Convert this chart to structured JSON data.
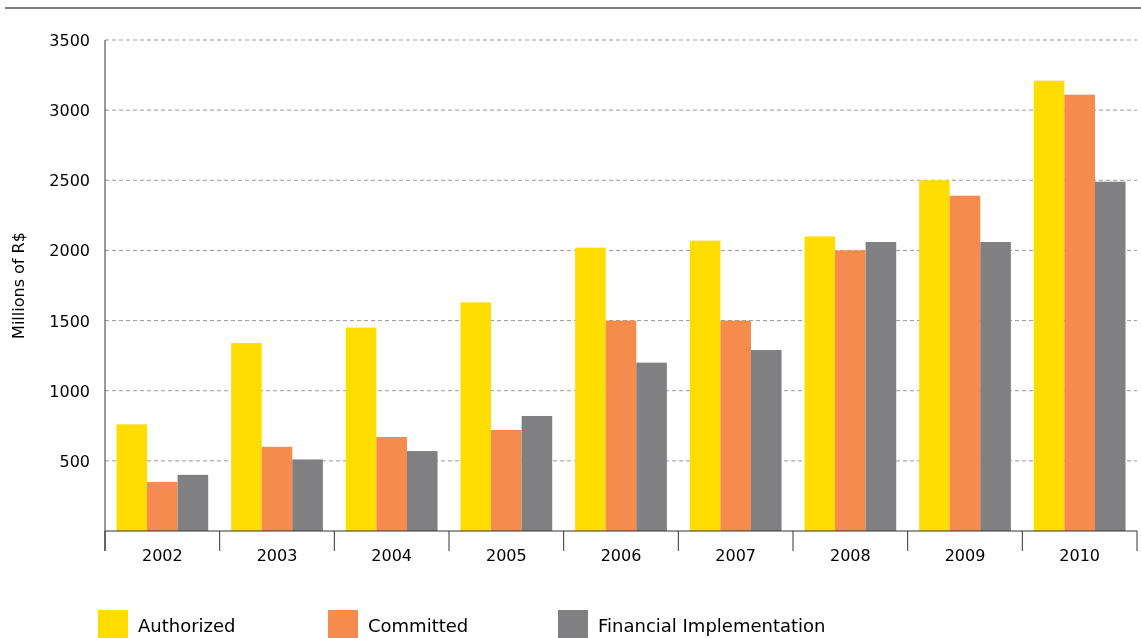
{
  "chart_data": {
    "type": "bar",
    "ylabel": "Millions of R$",
    "categories": [
      "2002",
      "2003",
      "2004",
      "2005",
      "2006",
      "2007",
      "2008",
      "2009",
      "2010"
    ],
    "series": [
      {
        "name": "Authorized",
        "color": "#ffdd00",
        "values": [
          760,
          1340,
          1450,
          1630,
          2020,
          2070,
          2100,
          2500,
          3210
        ]
      },
      {
        "name": "Committed",
        "color": "#f58b4c",
        "values": [
          350,
          600,
          670,
          720,
          1500,
          1500,
          2000,
          2390,
          3110
        ]
      },
      {
        "name": "Financial Implementation",
        "color": "#808083",
        "values": [
          400,
          510,
          570,
          820,
          1200,
          1290,
          2060,
          2060,
          2490
        ]
      }
    ],
    "ylim": [
      0,
      3500
    ],
    "yticks": [
      {
        "value": 0,
        "label": null
      },
      500,
      1000,
      1500,
      2000,
      2500,
      3000,
      3500
    ],
    "grid": "y",
    "legend": "bottom left"
  }
}
